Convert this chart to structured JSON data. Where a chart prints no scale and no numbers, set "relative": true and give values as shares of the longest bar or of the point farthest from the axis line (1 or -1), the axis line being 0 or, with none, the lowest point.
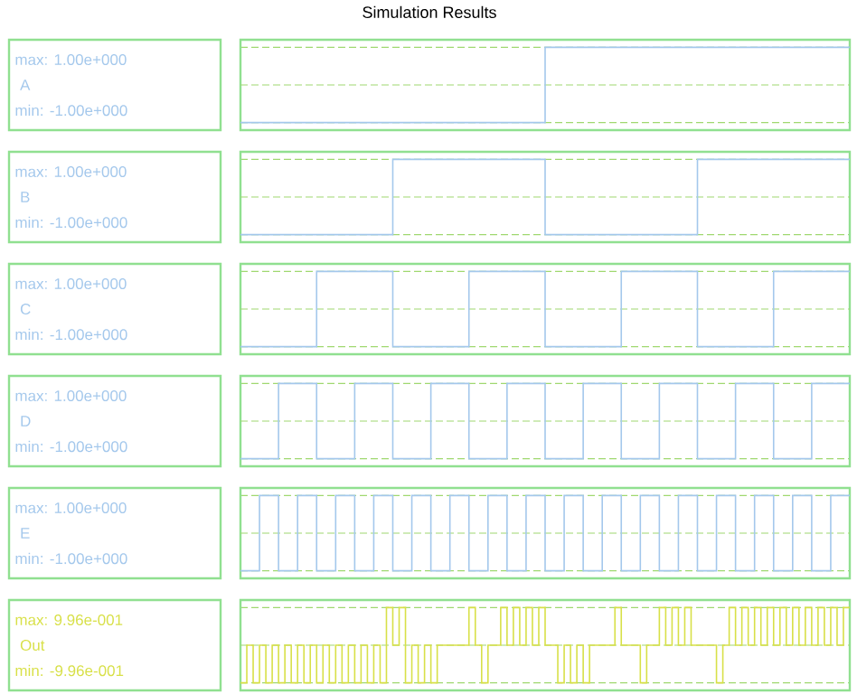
{
  "chart_data": [
    {
      "type": "step",
      "title": "Simulation Results",
      "ylabel": "A",
      "ref_lines": [
        {
          "axis": "y",
          "value": 0,
          "color": "#a0d870",
          "line_style": "dashed"
        }
      ],
      "annotations": [
        "max: 1.00e+000",
        "min: -1.00e+000"
      ],
      "relative": true,
      "grid": "y",
      "categories": [
        null,
        null,
        null
      ],
      "values": [
        -1,
        1,
        1
      ],
      "color": "#a4c8ec"
    },
    {
      "type": "step",
      "ylabel": "B",
      "ref_lines": [
        {
          "axis": "y",
          "value": 0,
          "color": "#a0d870",
          "line_style": "dashed"
        }
      ],
      "annotations": [
        "max: 1.00e+000",
        "min: -1.00e+000"
      ],
      "relative": true,
      "grid": "y",
      "categories": [
        null,
        null,
        null,
        null,
        null
      ],
      "values": [
        -1,
        1,
        -1,
        1,
        1
      ],
      "color": "#a4c8ec"
    },
    {
      "type": "step",
      "ylabel": "C",
      "ref_lines": [
        {
          "axis": "y",
          "value": 0,
          "color": "#a0d870",
          "line_style": "dashed"
        }
      ],
      "annotations": [
        "max: 1.00e+000",
        "min: -1.00e+000"
      ],
      "relative": true,
      "grid": "y",
      "categories": [
        null,
        null,
        null,
        null,
        null,
        null,
        null,
        null,
        null
      ],
      "values": [
        -1,
        1,
        -1,
        1,
        -1,
        1,
        -1,
        1,
        1
      ],
      "color": "#a4c8ec"
    },
    {
      "type": "step",
      "ylabel": "D",
      "ref_lines": [
        {
          "axis": "y",
          "value": 0,
          "color": "#a0d870",
          "line_style": "dashed"
        }
      ],
      "annotations": [
        "max: 1.00e+000",
        "min: -1.00e+000"
      ],
      "relative": true,
      "grid": "y",
      "categories": [
        null,
        null,
        null,
        null,
        null,
        null,
        null,
        null,
        null,
        null,
        null,
        null,
        null,
        null,
        null,
        null,
        null
      ],
      "values": [
        -1,
        1,
        -1,
        1,
        -1,
        1,
        -1,
        1,
        -1,
        1,
        -1,
        1,
        -1,
        1,
        -1,
        1,
        1
      ],
      "color": "#a4c8ec"
    },
    {
      "type": "step",
      "ylabel": "E",
      "ref_lines": [
        {
          "axis": "y",
          "value": 0,
          "color": "#a0d870",
          "line_style": "dashed"
        }
      ],
      "annotations": [
        "max: 1.00e+000",
        "min: -1.00e+000"
      ],
      "relative": true,
      "grid": "y",
      "categories": [
        null,
        null,
        null,
        null,
        null,
        null,
        null,
        null,
        null,
        null,
        null,
        null,
        null,
        null,
        null,
        null,
        null,
        null,
        null,
        null,
        null,
        null,
        null,
        null,
        null,
        null,
        null,
        null,
        null,
        null,
        null,
        null,
        null
      ],
      "values": [
        -1,
        1,
        -1,
        1,
        -1,
        1,
        -1,
        1,
        -1,
        1,
        -1,
        1,
        -1,
        1,
        -1,
        1,
        -1,
        1,
        -1,
        1,
        -1,
        1,
        -1,
        1,
        -1,
        1,
        -1,
        1,
        -1,
        1,
        -1,
        1,
        1
      ],
      "color": "#a4c8ec"
    },
    {
      "type": "step",
      "ylabel": "Out",
      "ref_lines": [
        {
          "axis": "y",
          "value": 0,
          "color": "#a0d870",
          "line_style": "dashed"
        }
      ],
      "annotations": [
        "max: 9.96e-001",
        "min: -9.96e-001"
      ],
      "relative": true,
      "grid": "y",
      "categories": [
        null,
        null,
        null,
        null,
        null,
        null,
        null,
        null,
        null,
        null,
        null,
        null,
        null,
        null,
        null,
        null,
        null,
        null,
        null,
        null,
        null,
        null,
        null,
        null,
        null,
        null,
        null,
        null,
        null,
        null,
        null,
        null,
        null,
        null,
        null,
        null,
        null,
        null,
        null,
        null,
        null,
        null,
        null,
        null,
        null,
        null,
        null,
        null,
        null,
        null,
        null,
        null,
        null,
        null,
        null,
        null,
        null,
        null,
        null,
        null,
        null,
        null,
        null,
        null,
        null,
        null,
        null,
        null,
        null,
        null,
        null,
        null,
        null,
        null,
        null,
        null,
        null,
        null,
        null,
        null,
        null,
        null,
        null,
        null,
        null,
        null,
        null,
        null,
        null,
        null,
        null,
        null,
        null,
        null,
        null,
        null,
        null
      ],
      "values": [
        -1,
        0,
        -1,
        0,
        -1,
        0,
        -1,
        0,
        -1,
        0,
        -1,
        0,
        -1,
        0,
        -1,
        0,
        -1,
        0,
        -1,
        0,
        -1,
        0,
        -1,
        1,
        0,
        1,
        -1,
        0,
        -1,
        0,
        -1,
        0,
        0,
        0,
        0,
        0,
        1,
        0,
        -1,
        0,
        0,
        1,
        0,
        1,
        0,
        1,
        0,
        1,
        0,
        0,
        -1,
        0,
        -1,
        0,
        -1,
        0,
        0,
        0,
        0,
        1,
        0,
        0,
        0,
        -1,
        0,
        0,
        1,
        0,
        1,
        0,
        1,
        0,
        0,
        0,
        0,
        -1,
        0,
        1,
        0,
        1,
        0,
        1,
        0,
        1,
        0,
        1,
        0,
        1,
        0,
        1,
        0,
        1,
        0,
        1,
        0,
        1,
        1
      ],
      "color": "#d8e048"
    }
  ]
}
